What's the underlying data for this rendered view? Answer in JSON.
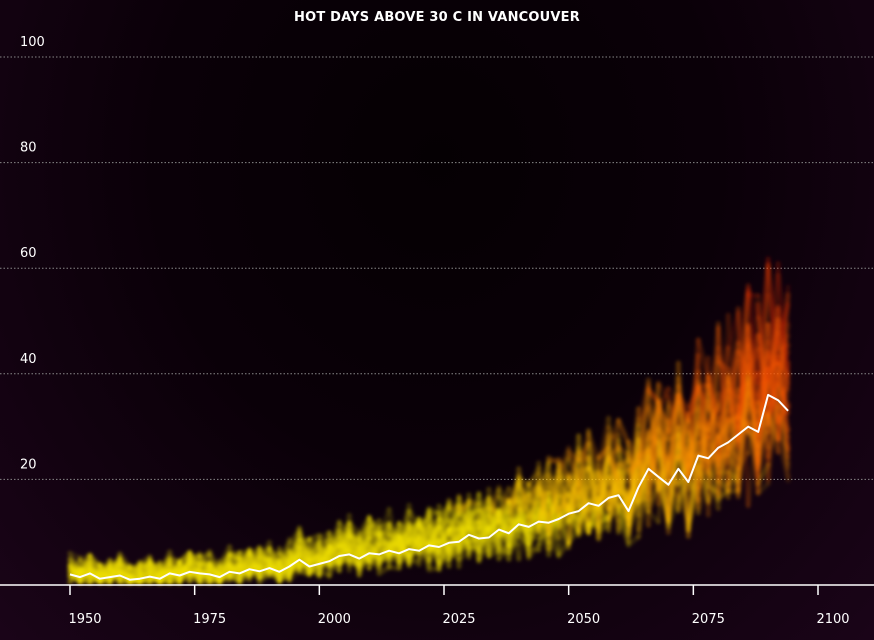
{
  "chart_data": {
    "type": "line",
    "title": "HOT DAYS ABOVE 30 C IN VANCOUVER",
    "xlabel": "",
    "ylabel": "",
    "xlim": [
      1940,
      2106
    ],
    "ylim": [
      0,
      105
    ],
    "x_ticks": [
      1950,
      1975,
      2000,
      2025,
      2050,
      2075,
      2100
    ],
    "x_tick_labels": [
      "1950",
      "1975",
      "2000",
      "2025",
      "2050",
      "2075",
      "2100"
    ],
    "y_ticks": [
      20,
      40,
      60,
      80,
      100
    ],
    "y_tick_labels": [
      "20",
      "40",
      "60",
      "80",
      "100"
    ],
    "grid": "horizontal dotted",
    "colors": {
      "low": "#f5e400",
      "mid": "#ff8a00",
      "high": "#e62000",
      "mean_line": "#ffffff",
      "grid": "#888888"
    },
    "series": [
      {
        "name": "",
        "style": "ensemble mean line",
        "x": [
          1950,
          1952,
          1954,
          1956,
          1958,
          1960,
          1962,
          1964,
          1966,
          1968,
          1970,
          1972,
          1974,
          1976,
          1978,
          1980,
          1982,
          1984,
          1986,
          1988,
          1990,
          1992,
          1994,
          1996,
          1998,
          2000,
          2002,
          2004,
          2006,
          2008,
          2010,
          2012,
          2014,
          2016,
          2018,
          2020,
          2022,
          2024,
          2026,
          2028,
          2030,
          2032,
          2034,
          2036,
          2038,
          2040,
          2042,
          2044,
          2046,
          2048,
          2050,
          2052,
          2054,
          2056,
          2058,
          2060,
          2062,
          2064,
          2066,
          2068,
          2070,
          2072,
          2074,
          2076,
          2078,
          2080,
          2082,
          2084,
          2086,
          2088,
          2090,
          2092,
          2094
        ],
        "values": [
          2,
          1.5,
          2.2,
          1.2,
          1.5,
          1.8,
          1,
          1.2,
          1.6,
          1.2,
          2.2,
          1.8,
          2.5,
          2.2,
          2,
          1.5,
          2.5,
          2.2,
          3,
          2.6,
          3.2,
          2.5,
          3.5,
          4.8,
          3.5,
          4,
          4.5,
          5.5,
          5.8,
          5,
          6,
          5.8,
          6.5,
          6,
          6.8,
          6.5,
          7.5,
          7.2,
          8,
          8.2,
          9.5,
          8.8,
          9,
          10.5,
          9.8,
          11.5,
          11,
          12,
          11.8,
          12.5,
          13.5,
          14,
          15.5,
          15,
          16.5,
          17,
          14,
          18.5,
          22,
          20.5,
          19,
          22,
          19.5,
          24.5,
          24,
          26,
          27,
          28.5,
          30,
          29,
          36,
          35,
          33
        ]
      }
    ]
  }
}
